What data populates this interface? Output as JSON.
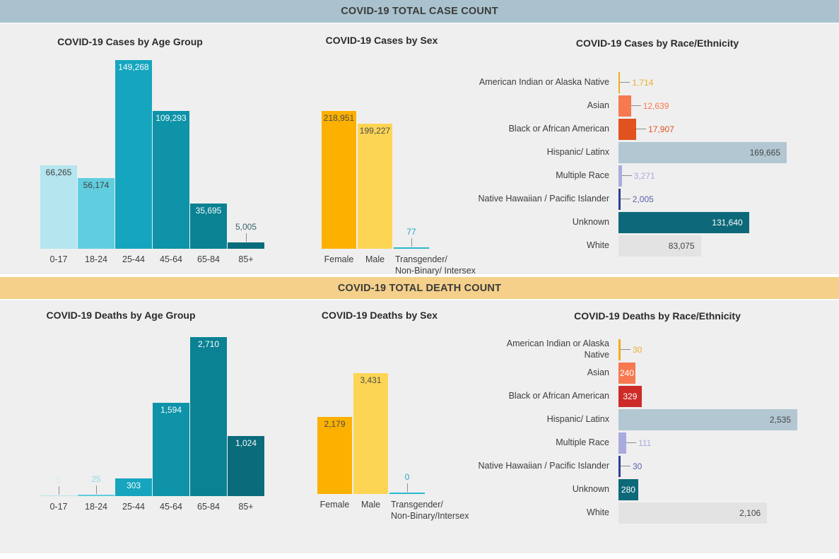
{
  "page": {
    "case_band_title": "COVID-19 TOTAL CASE COUNT",
    "death_band_title": "COVID-19 TOTAL DEATH COUNT",
    "colors": {
      "case_band_bg": "#a9c2cd",
      "death_band_bg": "#f5d08a",
      "section_bg": "#efefef",
      "leader_line": "#8c8c8c"
    }
  },
  "chart_data": [
    {
      "type": "bar",
      "title": "COVID-19 Cases by Age Group",
      "categories": [
        "0-17",
        "18-24",
        "25-44",
        "45-64",
        "65-84",
        "85+"
      ],
      "values": [
        66265,
        56174,
        149268,
        109293,
        35695,
        5005
      ],
      "value_labels": [
        "66,265",
        "56,174",
        "149,268",
        "109,293",
        "35,695",
        "5,005"
      ],
      "bar_colors": [
        "#b5e5ee",
        "#60cede",
        "#16a5bf",
        "#0e93a9",
        "#0b8294",
        "#0a6b7b"
      ],
      "value_label_colors": [
        "#404040",
        "#404040",
        "#f6fcfd",
        "#f6fcfd",
        "#f6fcfd",
        "#3a626c"
      ],
      "label_placements": [
        "inside",
        "inside",
        "inside",
        "inside",
        "inside",
        "leader"
      ],
      "xlabel": "",
      "ylabel": "",
      "ylim": [
        0,
        149268
      ],
      "grid": false,
      "legend": null
    },
    {
      "type": "bar",
      "title": "COVID-19 Cases by Sex",
      "categories": [
        "Female",
        "Male",
        "Transgender/\nNon-Binary/ Intersex"
      ],
      "values": [
        218951,
        199227,
        77
      ],
      "value_labels": [
        "218,951",
        "199,227",
        "77"
      ],
      "bar_colors": [
        "#fcb000",
        "#fdd554",
        "#29b7ce"
      ],
      "value_label_colors": [
        "#4c4c4c",
        "#4c4c4c",
        "#2aa9c3"
      ],
      "label_placements": [
        "inside",
        "inside",
        "leader"
      ],
      "xlabel": "",
      "ylabel": "",
      "ylim": [
        0,
        218951
      ],
      "grid": false,
      "legend": null
    },
    {
      "type": "hbar",
      "title": "COVID-19 Cases by Race/Ethnicity",
      "categories": [
        "American Indian or Alaska Native",
        "Asian",
        "Black or African American",
        "Hispanic/ Latinx",
        "Multiple Race",
        "Native Hawaiian / Pacific Islander",
        "Unknown",
        "White"
      ],
      "values": [
        1714,
        12639,
        17907,
        169665,
        3271,
        2005,
        131640,
        83075
      ],
      "value_labels": [
        "1,714",
        "12,639",
        "17,907",
        "169,665",
        "3,271",
        "2,005",
        "131,640",
        "83,075"
      ],
      "bar_colors": [
        "#efac20",
        "#f6794f",
        "#e0521e",
        "#b2c7d2",
        "#a9abdd",
        "#2e3e95",
        "#0d6979",
        "#e3e3e3"
      ],
      "value_label_colors": [
        "#eead2a",
        "#f6794f",
        "#e0521e",
        "#454545",
        "#a9abdd",
        "#5a61ac",
        "#ffffff",
        "#454545"
      ],
      "label_placements": [
        "out",
        "out",
        "out",
        "in-right",
        "out",
        "out",
        "in-right",
        "in-right"
      ],
      "xlabel": "",
      "ylabel": "",
      "xlim": [
        0,
        169665
      ],
      "grid": false,
      "legend": null
    },
    {
      "type": "bar",
      "title": "COVID-19 Deaths by Age Group",
      "categories": [
        "0-17",
        "18-24",
        "25-44",
        "45-64",
        "65-84",
        "85+"
      ],
      "values": [
        5,
        25,
        303,
        1594,
        2710,
        1024
      ],
      "value_labels": [
        "5",
        "25",
        "303",
        "1,594",
        "2,710",
        "1,024"
      ],
      "bar_colors": [
        "#b5e5ee",
        "#60cede",
        "#16a5bf",
        "#0e93a9",
        "#0b8294",
        "#0a6b7b"
      ],
      "value_label_colors": [
        "#cdebf1",
        "#8fd8e4",
        "#f6fcfd",
        "#f6fcfd",
        "#f6fcfd",
        "#f6fcfd"
      ],
      "label_placements": [
        "leader",
        "leader",
        "inside",
        "inside",
        "inside",
        "inside"
      ],
      "xlabel": "",
      "ylabel": "",
      "ylim": [
        0,
        2710
      ],
      "grid": false,
      "legend": null
    },
    {
      "type": "bar",
      "title": "COVID-19 Deaths by Sex",
      "categories": [
        "Female",
        "Male",
        "Transgender/\nNon-Binary/Intersex"
      ],
      "values": [
        2179,
        3431,
        0
      ],
      "value_labels": [
        "2,179",
        "3,431",
        "0"
      ],
      "bar_colors": [
        "#fcb000",
        "#fdd554",
        "#29b7ce"
      ],
      "value_label_colors": [
        "#4c4c4c",
        "#4c4c4c",
        "#2aa9c3"
      ],
      "label_placements": [
        "inside",
        "inside",
        "leader"
      ],
      "xlabel": "",
      "ylabel": "",
      "ylim": [
        0,
        3431
      ],
      "grid": false,
      "legend": null
    },
    {
      "type": "hbar",
      "title": "COVID-19 Deaths by Race/Ethnicity",
      "categories": [
        "American Indian or Alaska\nNative",
        "Asian",
        "Black or African American",
        "Hispanic/ Latinx",
        "Multiple Race",
        "Native Hawaiian / Pacific Islander",
        "Unknown",
        "White"
      ],
      "values": [
        30,
        240,
        329,
        2535,
        111,
        30,
        280,
        2106
      ],
      "value_labels": [
        "30",
        "240",
        "329",
        "2,535",
        "111",
        "30",
        "280",
        "2,106"
      ],
      "bar_colors": [
        "#efac20",
        "#f6794f",
        "#cd2b28",
        "#b2c7d2",
        "#a9abdd",
        "#2e3e95",
        "#0d6979",
        "#e3e3e3"
      ],
      "value_label_colors": [
        "#eead2a",
        "#ffffff",
        "#ffffff",
        "#454545",
        "#a9abdd",
        "#5a61ac",
        "#ffffff",
        "#454545"
      ],
      "label_placements": [
        "out",
        "in-center",
        "in-center",
        "in-right",
        "out",
        "out",
        "in-center",
        "in-right"
      ],
      "xlabel": "",
      "ylabel": "",
      "xlim": [
        0,
        2535
      ],
      "grid": false,
      "legend": null
    }
  ]
}
